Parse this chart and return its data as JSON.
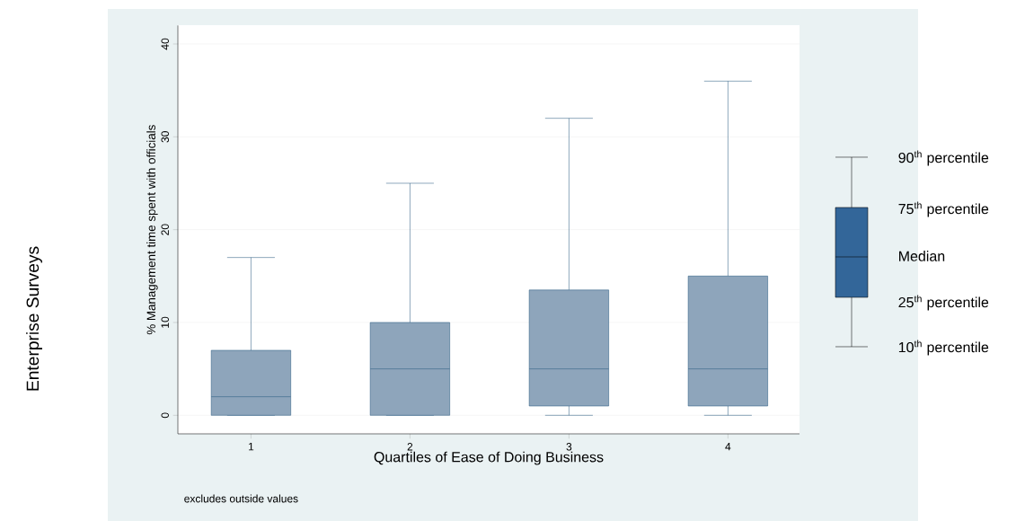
{
  "chart_data": {
    "type": "box",
    "ylabel": "% Management time spent with officials",
    "xlabel": "Quartiles of Ease of Doing Business",
    "categories": [
      "1",
      "2",
      "3",
      "4"
    ],
    "boxes": [
      {
        "low": 0,
        "q1": 0,
        "median": 2,
        "q3": 7,
        "high": 17
      },
      {
        "low": 0,
        "q1": 0,
        "median": 5,
        "q3": 10,
        "high": 25
      },
      {
        "low": 0,
        "q1": 1,
        "median": 5,
        "q3": 13.5,
        "high": 32
      },
      {
        "low": 0,
        "q1": 1,
        "median": 5,
        "q3": 15,
        "high": 36
      }
    ],
    "color": "#8ea5bb",
    "ylim": [
      -2,
      42
    ],
    "yticks": [
      0,
      10,
      20,
      30,
      40
    ],
    "grid": "y",
    "annotations": [
      "Enterprise Surveys",
      "excludes outside values",
      "90$^{th}$ percentile",
      "75$^{th}$ percentile",
      "Median",
      "25$^{th}$ percentile",
      "10$^{th}$ percentile"
    ]
  }
}
